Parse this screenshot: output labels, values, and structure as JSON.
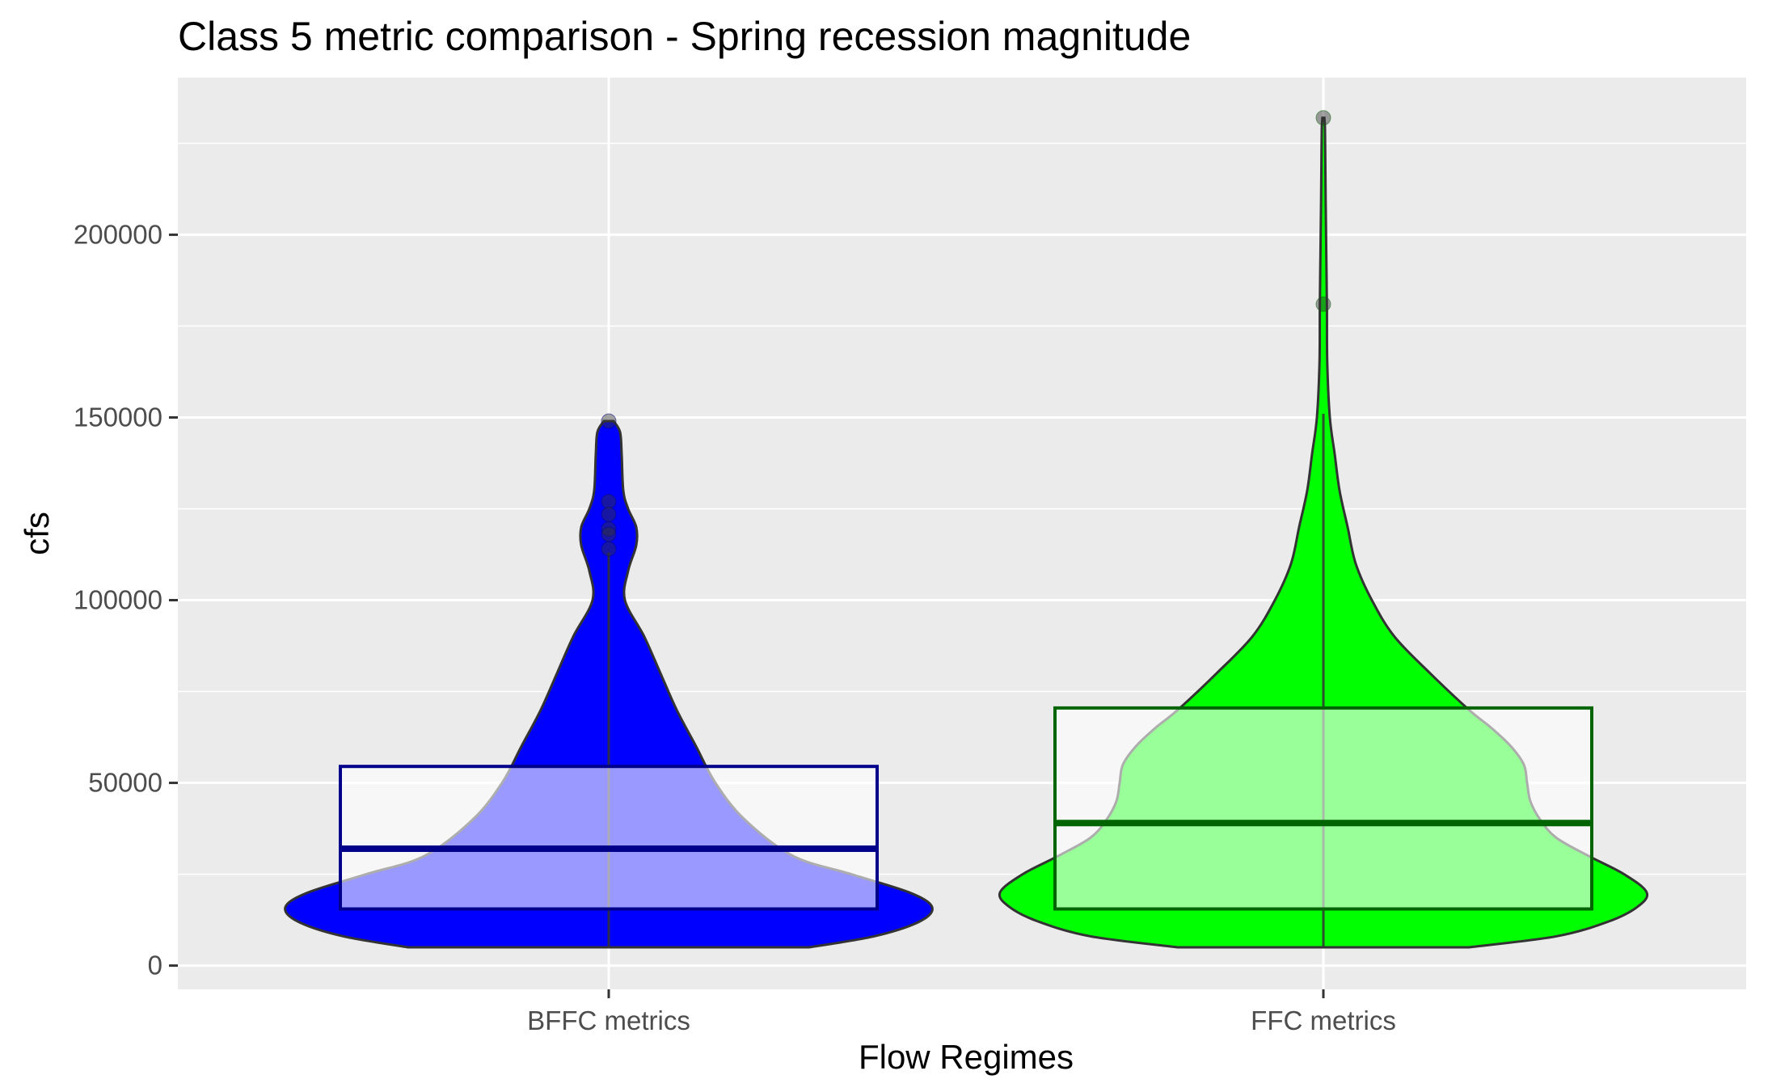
{
  "chart_data": {
    "type": "violin",
    "title": "Class 5 metric comparison - Spring recession magnitude",
    "xlabel": "Flow Regimes",
    "ylabel": "cfs",
    "categories": [
      "BFFC metrics",
      "FFC metrics"
    ],
    "ylim": [
      -6500,
      243000
    ],
    "yticks": [
      0,
      50000,
      100000,
      150000,
      200000
    ],
    "ytick_labels": [
      "0",
      "50000",
      "100000",
      "150000",
      "200000"
    ],
    "grid": true,
    "legend": "none",
    "series": [
      {
        "category": "BFFC metrics",
        "fill_color": "#0000ff",
        "box_color": "#00008b",
        "box": {
          "min": 5000,
          "q1": 15500,
          "median": 32000,
          "q3": 54500,
          "whisker_high": 113000,
          "max": 149000
        },
        "outliers": [
          149000,
          127000,
          123500,
          119500,
          118000,
          114000
        ],
        "density": [
          [
            5000,
            0.62
          ],
          [
            8000,
            0.82
          ],
          [
            12000,
            0.96
          ],
          [
            16000,
            1.0
          ],
          [
            20000,
            0.93
          ],
          [
            25000,
            0.75
          ],
          [
            30000,
            0.57
          ],
          [
            40000,
            0.42
          ],
          [
            50000,
            0.33
          ],
          [
            60000,
            0.27
          ],
          [
            70000,
            0.21
          ],
          [
            80000,
            0.16
          ],
          [
            90000,
            0.11
          ],
          [
            100000,
            0.05
          ],
          [
            108000,
            0.06
          ],
          [
            115000,
            0.085
          ],
          [
            120000,
            0.085
          ],
          [
            125000,
            0.06
          ],
          [
            130000,
            0.045
          ],
          [
            140000,
            0.04
          ],
          [
            146000,
            0.035
          ],
          [
            149000,
            0.015
          ]
        ]
      },
      {
        "category": "FFC metrics",
        "fill_color": "#00ff00",
        "box_color": "#006400",
        "box": {
          "min": 5000,
          "q1": 15500,
          "median": 39000,
          "q3": 70500,
          "whisker_high": 151000,
          "max": 232000
        },
        "outliers": [
          232000,
          181000
        ],
        "density": [
          [
            5000,
            0.45
          ],
          [
            8000,
            0.72
          ],
          [
            12000,
            0.88
          ],
          [
            16000,
            0.97
          ],
          [
            20000,
            1.0
          ],
          [
            25000,
            0.93
          ],
          [
            30000,
            0.82
          ],
          [
            35000,
            0.72
          ],
          [
            40000,
            0.67
          ],
          [
            45000,
            0.64
          ],
          [
            50000,
            0.63
          ],
          [
            55000,
            0.62
          ],
          [
            60000,
            0.58
          ],
          [
            65000,
            0.52
          ],
          [
            70000,
            0.45
          ],
          [
            80000,
            0.33
          ],
          [
            90000,
            0.22
          ],
          [
            100000,
            0.15
          ],
          [
            110000,
            0.1
          ],
          [
            120000,
            0.075
          ],
          [
            130000,
            0.05
          ],
          [
            140000,
            0.035
          ],
          [
            150000,
            0.02
          ],
          [
            165000,
            0.012
          ],
          [
            180000,
            0.011
          ],
          [
            195000,
            0.009
          ],
          [
            210000,
            0.007
          ],
          [
            220000,
            0.006
          ],
          [
            229000,
            0.005
          ],
          [
            232000,
            0.003
          ]
        ]
      }
    ]
  }
}
